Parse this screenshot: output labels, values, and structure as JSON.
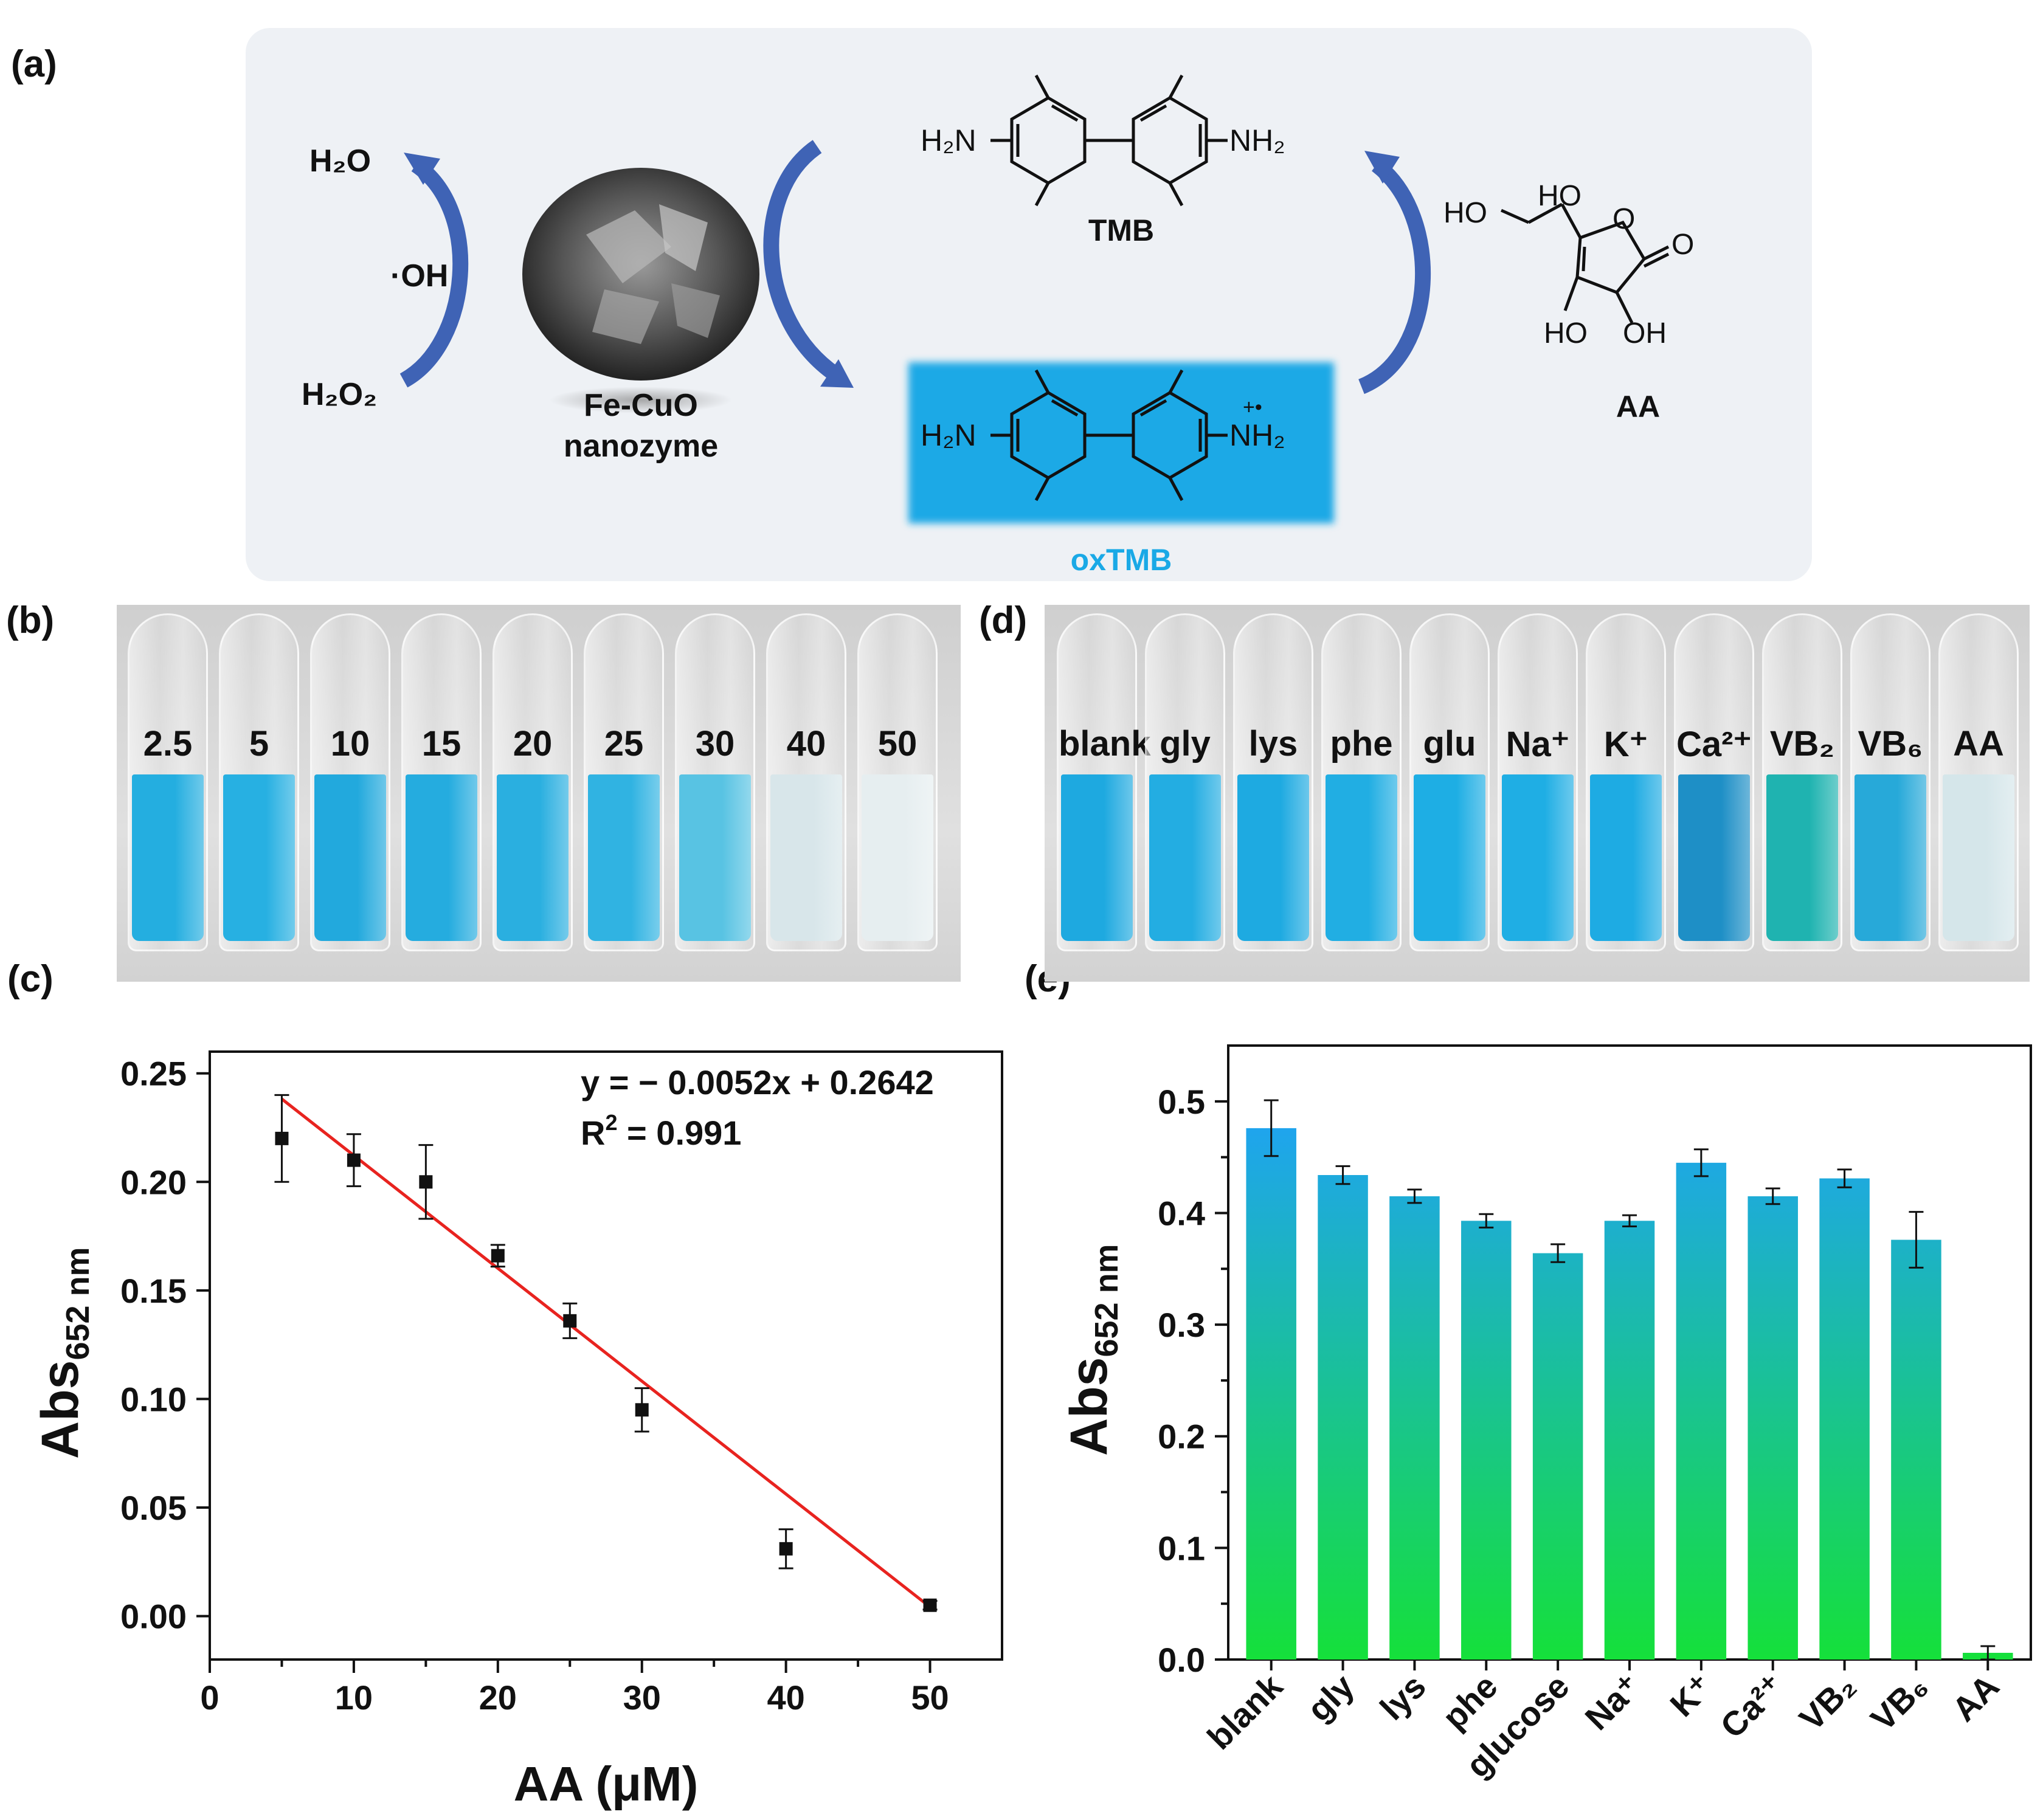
{
  "panel_labels": {
    "a": "(a)",
    "b": "(b)",
    "c": "(c)",
    "d": "(d)",
    "e": "(e)"
  },
  "scheme": {
    "h2o": "H₂O",
    "oh_radical": "·OH",
    "h2o2": "H₂O₂",
    "catalyst_line1": "Fe-CuO",
    "catalyst_line2": "nanozyme",
    "tmb_label": "TMB",
    "oxtmb_label": "oxTMB",
    "aa_label": "AA",
    "h2n": "H₂N",
    "nh2": "NH₂",
    "radical_cation": "+•",
    "ho_top": "HO",
    "ho_left": "HO",
    "o_ring": "O",
    "o_carbonyl": "O",
    "ho_bottom": "HO",
    "oh_bottom": "OH",
    "colors": {
      "arrow": "#3f63b5",
      "oxtmb_box": "#1aa9e6",
      "oxtmb_text": "#1aa9e6",
      "background": "#eef1f5"
    }
  },
  "tubes_b": {
    "labels": [
      "2.5",
      "5",
      "10",
      "15",
      "20",
      "25",
      "30",
      "40",
      "50"
    ],
    "colors": [
      "#24aee0",
      "#27b0e2",
      "#22a9dd",
      "#25acdf",
      "#2aafe0",
      "#30b3e2",
      "#58c3e3",
      "#d8e6ea",
      "#e6eef0"
    ]
  },
  "tubes_d": {
    "labels": [
      "blank",
      "gly",
      "lys",
      "phe",
      "glu",
      "Na⁺",
      "K⁺",
      "Ca²⁺",
      "VB₂",
      "VB₆",
      "AA"
    ],
    "colors": [
      "#1ea9e0",
      "#23ade2",
      "#1eaae1",
      "#21aee3",
      "#1eaee4",
      "#1faee4",
      "#1eabe3",
      "#1e8fc6",
      "#1fb3b0",
      "#27a9d9",
      "#d5e6ea"
    ]
  },
  "chart_data": [
    {
      "type": "scatter",
      "panel": "c",
      "title": "",
      "xlabel": "AA (μM)",
      "ylabel": "Abs",
      "ylabel_sub": "652 nm",
      "xlim": [
        0,
        55
      ],
      "ylim": [
        -0.02,
        0.26
      ],
      "xticks": [
        "0",
        "10",
        "20",
        "30",
        "40",
        "50"
      ],
      "yticks": [
        "0.00",
        "0.05",
        "0.10",
        "0.15",
        "0.20",
        "0.25"
      ],
      "x": [
        5,
        10,
        15,
        20,
        25,
        30,
        40,
        50
      ],
      "y": [
        0.22,
        0.21,
        0.2,
        0.166,
        0.136,
        0.095,
        0.031,
        0.005
      ],
      "errors": [
        0.02,
        0.012,
        0.017,
        0.005,
        0.008,
        0.01,
        0.009,
        0.002
      ],
      "fit": {
        "slope": -0.0052,
        "intercept": 0.2642,
        "x_range": [
          5,
          50
        ],
        "color": "#e8231f"
      },
      "equation": "y = − 0.0052x + 0.2642",
      "r2_prefix": "R",
      "r2_sup": "2",
      "r2_value": " = 0.991"
    },
    {
      "type": "bar",
      "panel": "e",
      "title": "",
      "xlabel": "",
      "ylabel": "Abs",
      "ylabel_sub": "652 nm",
      "ylim": [
        0,
        0.55
      ],
      "yticks": [
        "0.0",
        "0.1",
        "0.2",
        "0.3",
        "0.4",
        "0.5"
      ],
      "categories": [
        "blank",
        "gly",
        "lys",
        "phe",
        "glucose",
        "Na⁺",
        "K⁺",
        "Ca²⁺",
        "VB₂",
        "VB₆",
        "AA"
      ],
      "values": [
        0.476,
        0.434,
        0.415,
        0.393,
        0.364,
        0.393,
        0.445,
        0.415,
        0.431,
        0.376,
        0.006
      ],
      "errors": [
        0.025,
        0.008,
        0.006,
        0.006,
        0.008,
        0.005,
        0.012,
        0.007,
        0.008,
        0.025,
        0.006
      ],
      "colors": {
        "top": "#1fa4ef",
        "bottom": "#15e03a"
      }
    }
  ]
}
